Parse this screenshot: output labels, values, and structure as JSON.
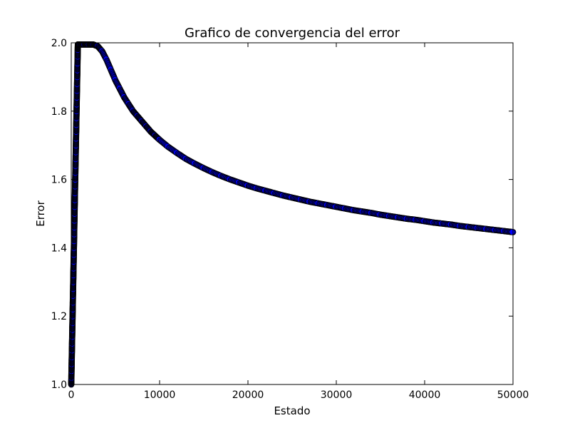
{
  "chart_data": {
    "type": "scatter",
    "title": "Grafico de convergencia del error",
    "xlabel": "Estado",
    "ylabel": "Error",
    "xlim": [
      0,
      50000
    ],
    "ylim": [
      1.0,
      2.0
    ],
    "xticks": [
      0,
      10000,
      20000,
      30000,
      40000,
      50000
    ],
    "xtick_labels": [
      "0",
      "10000",
      "20000",
      "30000",
      "40000",
      "50000"
    ],
    "yticks": [
      1.0,
      1.2,
      1.4,
      1.6,
      1.8,
      2.0
    ],
    "ytick_labels": [
      "1.0",
      "1.2",
      "1.4",
      "1.6",
      "1.8",
      "2.0"
    ],
    "grid": false,
    "marker_color": "#0000ff",
    "marker_edge_color": "#000000",
    "series": [
      {
        "x": [
          0,
          15,
          30,
          45,
          60,
          75,
          90,
          105,
          120,
          135,
          150,
          165,
          180,
          195,
          210,
          225,
          240,
          255,
          270,
          285,
          300,
          315,
          330,
          345,
          360,
          375,
          390,
          405,
          420,
          435,
          450,
          465,
          480,
          495,
          510,
          525,
          540,
          555,
          570,
          585,
          600,
          615,
          630,
          645,
          660,
          675,
          690,
          705,
          720,
          735,
          750
        ],
        "y": [
          1.0,
          1.02,
          1.04,
          1.06,
          1.08,
          1.1,
          1.12,
          1.14,
          1.16,
          1.18,
          1.2,
          1.22,
          1.24,
          1.26,
          1.28,
          1.3,
          1.32,
          1.34,
          1.36,
          1.38,
          1.4,
          1.42,
          1.44,
          1.46,
          1.48,
          1.5,
          1.52,
          1.54,
          1.56,
          1.58,
          1.6,
          1.62,
          1.64,
          1.66,
          1.68,
          1.7,
          1.72,
          1.74,
          1.76,
          1.78,
          1.8,
          1.82,
          1.84,
          1.86,
          1.88,
          1.9,
          1.92,
          1.94,
          1.96,
          1.98,
          1.995
        ]
      },
      {
        "x": [
          750,
          1000,
          1500,
          2000,
          2500,
          3000,
          3500,
          4000,
          4500,
          5000,
          5500,
          6000,
          6500,
          7000,
          7500,
          8000,
          8500,
          9000,
          9500,
          10000,
          11000,
          12000,
          13000,
          14000,
          15000,
          16000,
          17000,
          18000,
          19000,
          20000,
          21000,
          22000,
          23000,
          24000,
          25000,
          26000,
          27000,
          28000,
          29000,
          30000,
          31000,
          32000,
          33000,
          34000,
          35000,
          36000,
          37000,
          38000,
          39000,
          40000,
          41000,
          42000,
          43000,
          44000,
          45000,
          46000,
          47000,
          48000,
          49000,
          50000
        ],
        "y": [
          1.995,
          1.995,
          1.995,
          1.995,
          1.995,
          1.99,
          1.975,
          1.95,
          1.92,
          1.89,
          1.865,
          1.84,
          1.82,
          1.8,
          1.785,
          1.77,
          1.755,
          1.74,
          1.728,
          1.716,
          1.695,
          1.677,
          1.66,
          1.646,
          1.633,
          1.621,
          1.61,
          1.6,
          1.591,
          1.582,
          1.574,
          1.567,
          1.56,
          1.553,
          1.547,
          1.541,
          1.535,
          1.53,
          1.525,
          1.52,
          1.515,
          1.51,
          1.506,
          1.502,
          1.497,
          1.493,
          1.489,
          1.485,
          1.482,
          1.478,
          1.474,
          1.471,
          1.468,
          1.464,
          1.461,
          1.458,
          1.455,
          1.452,
          1.449,
          1.446
        ]
      }
    ]
  }
}
